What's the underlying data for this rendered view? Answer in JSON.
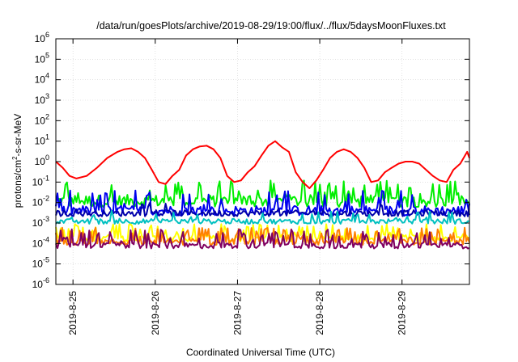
{
  "chart_data": {
    "type": "line",
    "title": "/data/run/goesPlots/archive/2019-08-29/19:00/flux/../flux/5daysMoonFluxes.txt",
    "xlabel": "Coordinated Universal Time (UTC)",
    "ylabel": {
      "prefix": "protons/cm",
      "sup": "2",
      "suffix": "-s-sr-MeV"
    },
    "y_scale": "log",
    "ylim": [
      1e-06,
      1000000.0
    ],
    "y_ticks": [
      {
        "base": "10",
        "exp": "6",
        "value": 1000000.0
      },
      {
        "base": "10",
        "exp": "5",
        "value": 100000.0
      },
      {
        "base": "10",
        "exp": "4",
        "value": 10000.0
      },
      {
        "base": "10",
        "exp": "3",
        "value": 1000.0
      },
      {
        "base": "10",
        "exp": "2",
        "value": 100.0
      },
      {
        "base": "10",
        "exp": "1",
        "value": 10.0
      },
      {
        "base": "10",
        "exp": "0",
        "value": 1.0
      },
      {
        "base": "10",
        "exp": "-1",
        "value": 0.1
      },
      {
        "base": "10",
        "exp": "-2",
        "value": 0.01
      },
      {
        "base": "10",
        "exp": "-3",
        "value": 0.001
      },
      {
        "base": "10",
        "exp": "-4",
        "value": 0.0001
      },
      {
        "base": "10",
        "exp": "-5",
        "value": 1e-05
      },
      {
        "base": "10",
        "exp": "-6",
        "value": 1e-06
      }
    ],
    "x_ticks": [
      "2019-8-25",
      "2019-8-26",
      "2019-8-27",
      "2019-8-28",
      "2019-8-29"
    ],
    "xlim_days": [
      "2019-08-24T19:00",
      "2019-08-29T19:40"
    ],
    "grid": true,
    "series": [
      {
        "color": "#ff0000",
        "x": [
          "2019-08-24T19:00",
          "2019-08-24T21:00",
          "2019-08-24T23:00",
          "2019-08-25T01:00",
          "2019-08-25T04:00",
          "2019-08-25T07:00",
          "2019-08-25T10:00",
          "2019-08-25T13:00",
          "2019-08-25T15:00",
          "2019-08-25T17:00",
          "2019-08-25T19:00",
          "2019-08-25T21:00",
          "2019-08-25T23:00",
          "2019-08-26T01:00",
          "2019-08-26T03:00",
          "2019-08-26T05:00",
          "2019-08-26T07:00",
          "2019-08-26T09:00",
          "2019-08-26T11:00",
          "2019-08-26T13:00",
          "2019-08-26T15:00",
          "2019-08-26T17:00",
          "2019-08-26T19:00",
          "2019-08-26T21:00",
          "2019-08-26T23:00",
          "2019-08-27T01:00",
          "2019-08-27T03:00",
          "2019-08-27T05:00",
          "2019-08-27T07:00",
          "2019-08-27T09:00",
          "2019-08-27T11:00",
          "2019-08-27T13:00",
          "2019-08-27T15:00",
          "2019-08-27T17:00",
          "2019-08-27T19:00",
          "2019-08-27T21:00",
          "2019-08-27T23:00",
          "2019-08-28T01:00",
          "2019-08-28T03:00",
          "2019-08-28T05:00",
          "2019-08-28T07:00",
          "2019-08-28T09:00",
          "2019-08-28T11:00",
          "2019-08-28T13:00",
          "2019-08-28T15:00",
          "2019-08-28T17:00",
          "2019-08-28T19:00",
          "2019-08-28T21:00",
          "2019-08-28T23:00",
          "2019-08-29T01:00",
          "2019-08-29T03:00",
          "2019-08-29T05:00",
          "2019-08-29T07:00",
          "2019-08-29T09:00",
          "2019-08-29T11:00",
          "2019-08-29T13:00",
          "2019-08-29T15:00",
          "2019-08-29T17:00",
          "2019-08-29T19:00",
          "2019-08-29T19:40"
        ],
        "values": [
          1.0,
          0.5,
          0.2,
          0.15,
          0.2,
          0.5,
          1.5,
          3,
          4,
          4.5,
          3,
          1.5,
          0.4,
          0.1,
          0.08,
          0.2,
          0.4,
          2,
          4,
          5.5,
          6,
          4,
          1.5,
          0.2,
          0.1,
          0.12,
          0.3,
          0.6,
          2,
          6,
          10,
          5,
          3,
          0.3,
          0.1,
          0.05,
          0.12,
          0.4,
          1.5,
          3,
          4,
          3,
          1.5,
          0.5,
          0.1,
          0.12,
          0.3,
          0.5,
          0.8,
          1,
          1,
          0.8,
          0.4,
          0.2,
          0.12,
          0.1,
          0.4,
          0.8,
          3,
          1.5
        ]
      },
      {
        "color": "#00ee00",
        "x_range": [
          "2019-08-24T19:00",
          "2019-08-29T19:40"
        ],
        "base": 0.012,
        "spread": 0.6,
        "spike_prob": 0.22,
        "spike_max": 0.12
      },
      {
        "color": "#0000ee",
        "x_range": [
          "2019-08-24T19:00",
          "2019-08-29T19:40"
        ],
        "base": 0.004,
        "spread": 0.5,
        "spike_prob": 0.14,
        "spike_max": 0.04
      },
      {
        "color": "#0000aa",
        "x_range": [
          "2019-08-24T19:00",
          "2019-08-29T19:40"
        ],
        "base": 0.003,
        "spread": 0.3,
        "spike_prob": 0.05,
        "spike_max": 0.01
      },
      {
        "color": "#00c0c0",
        "x_range": [
          "2019-08-24T19:00",
          "2019-08-29T19:40"
        ],
        "base": 0.0012,
        "spread": 0.25,
        "spike_prob": 0.12,
        "spike_max": 0.004
      },
      {
        "color": "#ffff00",
        "x_range": [
          "2019-08-24T19:00",
          "2019-08-29T19:40"
        ],
        "base": 0.00018,
        "spread": 0.35,
        "spike_prob": 0.3,
        "spike_max": 0.0009
      },
      {
        "color": "#ff8000",
        "x_range": [
          "2019-08-24T19:00",
          "2019-08-29T19:40"
        ],
        "base": 0.00012,
        "spread": 0.3,
        "spike_prob": 0.3,
        "spike_max": 0.0006
      },
      {
        "color": "#800060",
        "x_range": [
          "2019-08-24T19:00",
          "2019-08-29T19:40"
        ],
        "base": 8e-05,
        "spread": 0.3,
        "spike_prob": 0.3,
        "spike_max": 0.0005
      }
    ]
  }
}
